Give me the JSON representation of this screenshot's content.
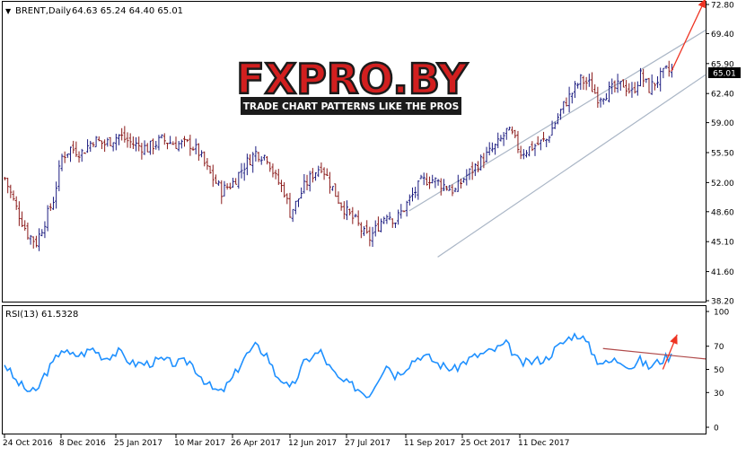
{
  "header": {
    "dropdown_icon": "triangle-down-icon",
    "symbol_label": "BRENT,Daily",
    "ohlc_text": "64.63 65.24 64.40 65.01"
  },
  "logo": {
    "brand": "FXPRO.BY",
    "tagline": "TRADE CHART PATTERNS LIKE THE PROS"
  },
  "colors": {
    "up_bar": "#1c1c80",
    "down_bar": "#8b1a1a",
    "rsi_line": "#1e90ff",
    "arrow": "#ee3322",
    "channel": "#aab6c6",
    "rsi_trend": "#b04a4a",
    "price_tag_bg": "#000000",
    "grid_text": "#000000",
    "logo_red": "#d21f1f",
    "logo_dark": "#1b1b1b"
  },
  "chart_data": [
    {
      "type": "ohlc",
      "symbol": "BRENT",
      "timeframe": "Daily",
      "last_price": "65.01",
      "y_ticks": [
        "72.80",
        "69.40",
        "65.90",
        "62.40",
        "59.00",
        "55.50",
        "52.00",
        "48.60",
        "45.10",
        "41.60",
        "38.20"
      ],
      "ylim": [
        38.2,
        72.8
      ],
      "x_ticks": [
        "24 Oct 2016",
        "8 Dec 2016",
        "25 Jan 2017",
        "10 Mar 2017",
        "26 Apr 2017",
        "12 Jun 2017",
        "27 Jul 2017",
        "11 Sep 2017",
        "25 Oct 2017",
        "11 Dec 2017"
      ],
      "close_path": [
        [
          0,
          52.5
        ],
        [
          4,
          49.0
        ],
        [
          8,
          46.0
        ],
        [
          11,
          45.0
        ],
        [
          14,
          47.5
        ],
        [
          17,
          50.0
        ],
        [
          20,
          55.0
        ],
        [
          23,
          56.0
        ],
        [
          27,
          55.5
        ],
        [
          31,
          57.0
        ],
        [
          35,
          56.5
        ],
        [
          40,
          57.5
        ],
        [
          45,
          56.5
        ],
        [
          50,
          56.0
        ],
        [
          55,
          57.0
        ],
        [
          60,
          56.5
        ],
        [
          65,
          56.5
        ],
        [
          68,
          55.5
        ],
        [
          71,
          53.5
        ],
        [
          73,
          52.5
        ],
        [
          76,
          51.0
        ],
        [
          80,
          52.0
        ],
        [
          84,
          54.0
        ],
        [
          88,
          55.5
        ],
        [
          92,
          55.0
        ],
        [
          95,
          52.5
        ],
        [
          98,
          51.0
        ],
        [
          100,
          48.5
        ],
        [
          102,
          49.5
        ],
        [
          105,
          51.5
        ],
        [
          108,
          53.0
        ],
        [
          111,
          54.0
        ],
        [
          114,
          52.0
        ],
        [
          117,
          50.0
        ],
        [
          120,
          48.5
        ],
        [
          123,
          47.5
        ],
        [
          126,
          46.0
        ],
        [
          128,
          45.5
        ],
        [
          131,
          47.0
        ],
        [
          134,
          48.5
        ],
        [
          137,
          47.5
        ],
        [
          140,
          49.0
        ],
        [
          143,
          50.5
        ],
        [
          146,
          52.0
        ],
        [
          149,
          52.5
        ],
        [
          152,
          52.0
        ],
        [
          155,
          51.5
        ],
        [
          158,
          51.0
        ],
        [
          161,
          52.5
        ],
        [
          164,
          53.5
        ],
        [
          167,
          54.5
        ],
        [
          170,
          55.5
        ],
        [
          173,
          56.5
        ],
        [
          176,
          58.0
        ],
        [
          178,
          57.5
        ],
        [
          181,
          55.5
        ],
        [
          184,
          56.0
        ],
        [
          187,
          56.5
        ],
        [
          190,
          57.0
        ],
        [
          193,
          59.0
        ],
        [
          196,
          61.0
        ],
        [
          199,
          62.5
        ],
        [
          202,
          64.0
        ],
        [
          205,
          63.5
        ],
        [
          208,
          62.0
        ],
        [
          211,
          62.5
        ],
        [
          214,
          63.0
        ],
        [
          217,
          63.5
        ],
        [
          220,
          62.5
        ],
        [
          223,
          64.5
        ],
        [
          226,
          63.0
        ],
        [
          229,
          64.0
        ],
        [
          232,
          65.0
        ],
        [
          234,
          65.0
        ]
      ],
      "channel_lines": [
        {
          "from": [
            142,
            48.7
          ],
          "to": [
            246,
            69.8
          ]
        },
        {
          "from": [
            152,
            43.3
          ],
          "to": [
            246,
            64.6
          ]
        }
      ],
      "arrow": {
        "from": [
          234,
          65.0
        ],
        "to": [
          246,
          73.5
        ]
      }
    },
    {
      "type": "line",
      "indicator": "RSI",
      "period": 13,
      "title": "RSI(13) 61.5328",
      "y_ticks": [
        "100",
        "70",
        "50",
        "30",
        "0"
      ],
      "ylim": [
        0,
        100
      ],
      "series": [
        {
          "name": "RSI(13)",
          "values": [
            [
              0,
              55
            ],
            [
              4,
              40
            ],
            [
              8,
              32
            ],
            [
              11,
              30
            ],
            [
              14,
              45
            ],
            [
              17,
              55
            ],
            [
              20,
              68
            ],
            [
              23,
              62
            ],
            [
              27,
              63
            ],
            [
              31,
              68
            ],
            [
              35,
              60
            ],
            [
              40,
              65
            ],
            [
              45,
              55
            ],
            [
              50,
              55
            ],
            [
              55,
              58
            ],
            [
              60,
              55
            ],
            [
              65,
              57
            ],
            [
              68,
              47
            ],
            [
              71,
              38
            ],
            [
              73,
              33
            ],
            [
              76,
              30
            ],
            [
              80,
              42
            ],
            [
              84,
              60
            ],
            [
              88,
              70
            ],
            [
              92,
              63
            ],
            [
              95,
              46
            ],
            [
              98,
              40
            ],
            [
              100,
              32
            ],
            [
              102,
              40
            ],
            [
              105,
              55
            ],
            [
              108,
              62
            ],
            [
              111,
              65
            ],
            [
              114,
              52
            ],
            [
              117,
              42
            ],
            [
              120,
              38
            ],
            [
              123,
              35
            ],
            [
              126,
              30
            ],
            [
              128,
              28
            ],
            [
              131,
              42
            ],
            [
              134,
              55
            ],
            [
              137,
              45
            ],
            [
              140,
              50
            ],
            [
              143,
              57
            ],
            [
              146,
              62
            ],
            [
              149,
              60
            ],
            [
              152,
              55
            ],
            [
              155,
              52
            ],
            [
              158,
              50
            ],
            [
              161,
              56
            ],
            [
              164,
              60
            ],
            [
              167,
              63
            ],
            [
              170,
              65
            ],
            [
              173,
              68
            ],
            [
              176,
              72
            ],
            [
              178,
              66
            ],
            [
              181,
              55
            ],
            [
              184,
              56
            ],
            [
              187,
              58
            ],
            [
              190,
              59
            ],
            [
              193,
              67
            ],
            [
              196,
              73
            ],
            [
              199,
              79
            ],
            [
              202,
              80
            ],
            [
              205,
              70
            ],
            [
              208,
              58
            ],
            [
              211,
              55
            ],
            [
              214,
              58
            ],
            [
              217,
              57
            ],
            [
              220,
              52
            ],
            [
              223,
              58
            ],
            [
              226,
              52
            ],
            [
              229,
              56
            ],
            [
              232,
              60
            ],
            [
              234,
              61.5
            ]
          ]
        }
      ],
      "trendline": {
        "from": [
          210,
          68
        ],
        "to": [
          246,
          59
        ]
      },
      "arrow": {
        "from": [
          231,
          50
        ],
        "to": [
          236,
          80
        ]
      }
    }
  ]
}
